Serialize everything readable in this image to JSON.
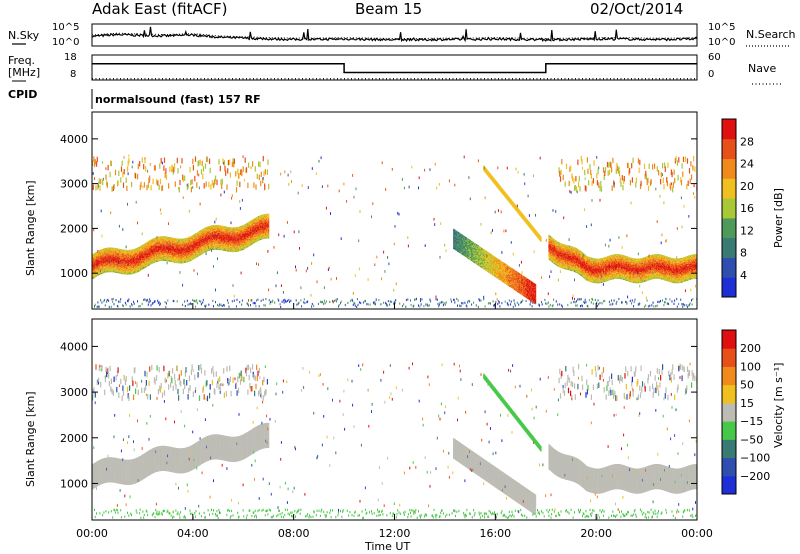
{
  "header": {
    "radar": "Adak East (fitACF)",
    "beam": "Beam 15",
    "date": "02/Oct/2014"
  },
  "noise_panel": {
    "left_label": "N.Sky",
    "right_label": "N.Search",
    "left_ticks": [
      "10^5",
      "10^0"
    ],
    "right_ticks": [
      "10^5",
      "10^0"
    ]
  },
  "freq_panel": {
    "left_label_1": "Freq.",
    "left_label_2": "[MHz]",
    "right_label": "Nave",
    "left_ticks": [
      "18",
      "8"
    ],
    "right_ticks": [
      "60",
      "0"
    ]
  },
  "cpid_panel": {
    "label": "CPID",
    "text": "normalsound (fast) 157 RF"
  },
  "colors": {
    "power_scale": [
      "#1f2fd6",
      "#2f4fb0",
      "#3a7a74",
      "#4f9a5a",
      "#a8c837",
      "#f0c020",
      "#f08a1c",
      "#e8501a",
      "#e01010"
    ],
    "velocity_scale": [
      "#1f2fd6",
      "#2f4fb0",
      "#3a7a74",
      "#48c848",
      "#bcbcb4",
      "#f0c020",
      "#f08a1c",
      "#e8501a",
      "#e01010"
    ],
    "ground_scatter": "#bcbcb4"
  },
  "chart_data": [
    {
      "type": "line",
      "name": "noise",
      "x": [
        0,
        1,
        2,
        3,
        4,
        5,
        6,
        7,
        8,
        9,
        10,
        11,
        12,
        13,
        14,
        15,
        16,
        17,
        18,
        19,
        20,
        21,
        22,
        23,
        24
      ],
      "y_log": [
        2.2,
        2.6,
        2.4,
        2.3,
        2.5,
        2.0,
        1.8,
        1.6,
        1.5,
        1.5,
        1.6,
        1.5,
        1.4,
        1.4,
        1.5,
        1.5,
        1.6,
        1.5,
        1.4,
        1.5,
        1.6,
        1.6,
        1.5,
        1.5,
        1.6
      ],
      "ylim": [
        0,
        5
      ]
    },
    {
      "type": "line",
      "name": "frequency",
      "x": [
        0,
        10,
        10,
        18,
        18,
        24
      ],
      "values": [
        14.5,
        14.5,
        11.0,
        11.0,
        14.5,
        14.5
      ],
      "ylim": [
        8,
        18
      ],
      "nave": 3
    },
    {
      "type": "heatmap",
      "name": "power",
      "colorbar_label": "Power [dB]",
      "colorbar_ticks": [
        "28",
        "24",
        "20",
        "16",
        "12",
        "8",
        "4"
      ],
      "ylabel": "Slant Range [km]",
      "yticks": [
        "4000",
        "3000",
        "2000",
        "1000"
      ],
      "ylim": [
        200,
        4600
      ],
      "xlim": [
        0,
        24
      ]
    },
    {
      "type": "heatmap",
      "name": "velocity",
      "colorbar_label": "Velocity [m s⁻¹]",
      "colorbar_ticks": [
        "200",
        "100",
        "50",
        "15",
        "−15",
        "−50",
        "−100",
        "−200"
      ],
      "ylabel": "Slant Range [km]",
      "yticks": [
        "4000",
        "3000",
        "2000",
        "1000"
      ],
      "xlabel": "Time UT",
      "xticks": [
        "00:00",
        "04:00",
        "08:00",
        "12:00",
        "16:00",
        "20:00",
        "00:00"
      ],
      "ylim": [
        200,
        4600
      ],
      "xlim": [
        0,
        24
      ]
    }
  ]
}
